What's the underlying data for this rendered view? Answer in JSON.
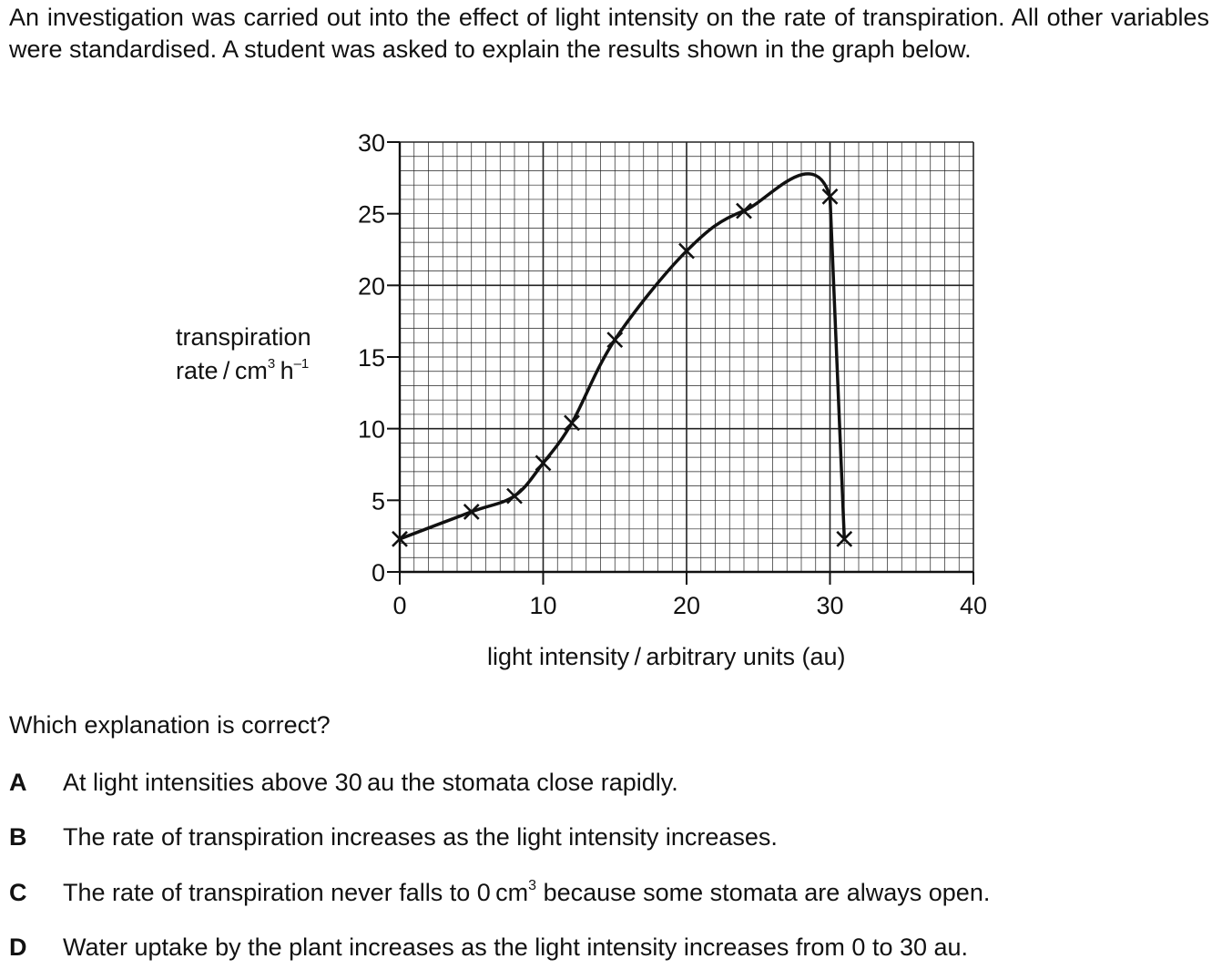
{
  "question": {
    "intro": "An investigation was carried out into the effect of light intensity on the rate of transpiration. All other variables were standardised. A student was asked to explain the results shown in the graph below.",
    "prompt": "Which explanation is correct?",
    "options": [
      {
        "letter": "A",
        "text": "At light intensities above 30 au the stomata close rapidly."
      },
      {
        "letter": "B",
        "text": "The rate of transpiration increases as the light intensity increases."
      },
      {
        "letter": "C",
        "text_before": "The rate of transpiration never falls to 0 cm",
        "sup": "3",
        "text_after": " because some stomata are always open."
      },
      {
        "letter": "D",
        "text": "Water uptake by the plant increases as the light intensity increases from 0 to 30 au."
      }
    ]
  },
  "chart_data": {
    "type": "line",
    "title": "",
    "xlabel": "light intensity / arbitrary units (au)",
    "ylabel": {
      "line1": "transpiration",
      "line2_before": "rate / cm",
      "sup1": "3",
      "line2_mid": " h",
      "sup2": "–1"
    },
    "xlim": [
      0,
      40
    ],
    "ylim": [
      0,
      30
    ],
    "x_ticks": [
      0,
      10,
      20,
      30,
      40
    ],
    "y_ticks": [
      0,
      5,
      10,
      15,
      20,
      25,
      30
    ],
    "grid": true,
    "series": [
      {
        "marker": "cross",
        "points": [
          {
            "x": 0,
            "y": 2.3
          },
          {
            "x": 5,
            "y": 4.2
          },
          {
            "x": 8,
            "y": 5.3
          },
          {
            "x": 10,
            "y": 7.6
          },
          {
            "x": 12,
            "y": 10.4
          },
          {
            "x": 15,
            "y": 16.2
          },
          {
            "x": 20,
            "y": 22.4
          },
          {
            "x": 24,
            "y": 25.2
          },
          {
            "x": 30,
            "y": 26.2
          },
          {
            "x": 31,
            "y": 2.3
          }
        ]
      }
    ]
  }
}
